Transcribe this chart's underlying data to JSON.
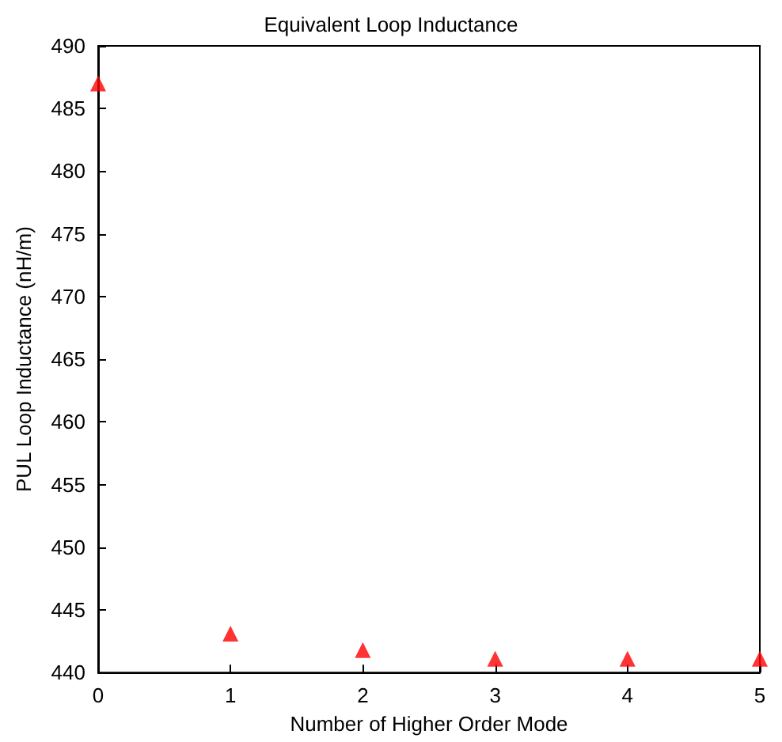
{
  "chart_data": {
    "type": "scatter",
    "title": "Equivalent Loop Inductance",
    "xlabel": "Number of Higher Order Mode",
    "ylabel": "PUL Loop Inductance (nH/m)",
    "x": [
      0,
      1,
      2,
      3,
      4,
      5
    ],
    "series": [
      {
        "color": "#ff0000",
        "values": [
          487,
          443.1,
          441.8,
          441.1,
          441.1,
          441.1
        ]
      }
    ],
    "xlim": [
      0,
      5
    ],
    "xticks": [
      0,
      1,
      2,
      3,
      4,
      5
    ],
    "ylim": [
      440,
      490
    ],
    "yticks": [
      440,
      445,
      450,
      455,
      460,
      465,
      470,
      475,
      480,
      485,
      490
    ],
    "grid": false,
    "marker": "triangle"
  }
}
